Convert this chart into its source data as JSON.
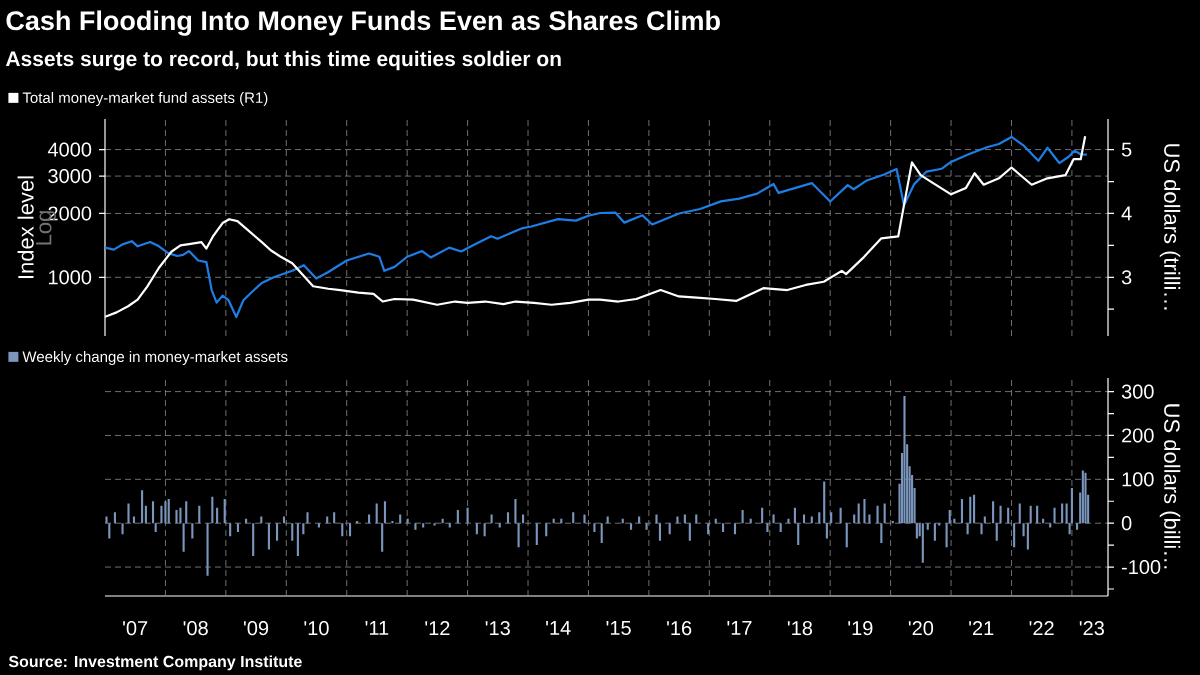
{
  "chart_data": [
    {
      "type": "line",
      "title": "Cash Flooding Into Money Funds Even as Shares Climb",
      "subtitle": "Assets surge to record, but this time equities soldier on",
      "ylabel": "Index level",
      "y2label": "US dollars (trilli…",
      "annotations": [
        "Log"
      ],
      "xlim": [
        "2007-01-01",
        "2023-08-07"
      ],
      "ylim": [
        529,
        5575
      ],
      "yticks": [
        1000,
        2000,
        3000,
        4000
      ],
      "log": "y",
      "y2lim": [
        2.08,
        5.48
      ],
      "y2ticks": [
        {
          "value": 2.5,
          "label": null
        },
        3,
        {
          "value": 3.5,
          "label": null
        },
        4,
        {
          "value": 4.5,
          "label": null
        },
        5
      ],
      "grid": true,
      "legend": "top left",
      "tick_labels": "y",
      "marker": "none",
      "line_style": "solid",
      "series": [
        {
          "name": "Total money-market fund assets (R1)",
          "color": "#ffffff",
          "axis": "y2",
          "x": [
            "2007-01-01",
            "2007-03-12",
            "2007-05-23",
            "2007-07-17",
            "2007-09-12",
            "2007-11-23",
            "2008-02-06",
            "2008-04-01",
            "2008-05-23",
            "2008-08-06",
            "2008-09-05",
            "2008-10-17",
            "2008-12-12",
            "2009-01-21",
            "2009-03-12",
            "2009-05-23",
            "2009-08-06",
            "2009-10-01",
            "2009-11-23",
            "2010-02-06",
            "2010-04-17",
            "2010-06-12",
            "2010-09-12",
            "2010-11-23",
            "2011-03-12",
            "2011-06-12",
            "2011-08-06",
            "2011-10-17",
            "2012-02-06",
            "2012-07-01",
            "2012-10-17",
            "2013-01-01",
            "2013-04-17",
            "2013-08-06",
            "2013-10-17",
            "2014-02-06",
            "2014-05-23",
            "2014-09-12",
            "2015-01-01",
            "2015-03-12",
            "2015-07-01",
            "2015-10-17",
            "2016-03-12",
            "2016-07-01",
            "2016-10-17",
            "2017-02-06",
            "2017-06-12",
            "2017-11-23",
            "2018-04-17",
            "2018-08-06",
            "2018-11-23",
            "2019-03-12",
            "2019-04-07",
            "2019-07-17",
            "2019-11-06",
            "2020-02-16",
            "2020-03-22",
            "2020-05-09",
            "2020-07-01",
            "2020-09-05",
            "2021-01-01",
            "2021-04-01",
            "2021-05-23",
            "2021-07-17",
            "2021-10-17",
            "2022-01-01",
            "2022-05-03",
            "2022-08-06",
            "2022-11-23",
            "2023-01-11",
            "2023-02-23",
            "2023-03-22"
          ],
          "values": [
            2.38,
            2.45,
            2.55,
            2.65,
            2.85,
            3.15,
            3.4,
            3.5,
            3.52,
            3.55,
            3.45,
            3.65,
            3.85,
            3.91,
            3.88,
            3.72,
            3.55,
            3.42,
            3.33,
            3.22,
            3.02,
            2.86,
            2.82,
            2.8,
            2.76,
            2.74,
            2.62,
            2.66,
            2.65,
            2.57,
            2.62,
            2.6,
            2.62,
            2.58,
            2.62,
            2.6,
            2.57,
            2.6,
            2.65,
            2.65,
            2.62,
            2.66,
            2.8,
            2.7,
            2.68,
            2.66,
            2.63,
            2.83,
            2.8,
            2.88,
            2.93,
            3.1,
            3.05,
            3.3,
            3.61,
            3.64,
            4.13,
            4.8,
            4.6,
            4.49,
            4.3,
            4.4,
            4.63,
            4.45,
            4.55,
            4.72,
            4.45,
            4.55,
            4.6,
            4.85,
            4.85,
            5.21
          ]
        },
        {
          "color": "#1e7ee6",
          "axis": "y",
          "x": [
            "2007-01-01",
            "2007-02-23",
            "2007-04-17",
            "2007-06-12",
            "2007-07-17",
            "2007-10-01",
            "2007-11-23",
            "2008-01-17",
            "2008-03-12",
            "2008-04-17",
            "2008-05-23",
            "2008-07-17",
            "2008-09-05",
            "2008-10-07",
            "2008-11-06",
            "2008-12-12",
            "2009-01-17",
            "2009-03-05",
            "2009-04-17",
            "2009-06-12",
            "2009-08-06",
            "2009-10-17",
            "2010-02-06",
            "2010-04-17",
            "2010-07-01",
            "2010-09-12",
            "2011-01-01",
            "2011-05-16",
            "2011-07-17",
            "2011-08-16",
            "2011-10-17",
            "2012-01-01",
            "2012-04-01",
            "2012-05-23",
            "2012-09-12",
            "2012-11-23",
            "2013-02-06",
            "2013-05-23",
            "2013-07-01",
            "2013-11-23",
            "2014-01-21",
            "2014-07-01",
            "2014-10-17",
            "2015-01-01",
            "2015-03-12",
            "2015-06-12",
            "2015-08-06",
            "2015-11-23",
            "2016-01-21",
            "2016-07-01",
            "2016-11-06",
            "2017-03-12",
            "2017-07-01",
            "2017-10-17",
            "2018-01-24",
            "2018-02-23",
            "2018-09-12",
            "2019-01-01",
            "2019-04-17",
            "2019-05-23",
            "2019-08-06",
            "2019-11-23",
            "2020-02-06",
            "2020-03-22",
            "2020-05-23",
            "2020-08-06",
            "2020-11-06",
            "2021-01-01",
            "2021-04-17",
            "2021-08-06",
            "2021-10-17",
            "2022-01-01",
            "2022-03-12",
            "2022-06-12",
            "2022-08-06",
            "2022-10-17",
            "2022-12-12",
            "2023-01-17",
            "2023-02-23",
            "2023-04-01"
          ],
          "values": [
            1379,
            1350,
            1430,
            1480,
            1400,
            1468,
            1400,
            1300,
            1260,
            1275,
            1330,
            1200,
            1180,
            870,
            760,
            820,
            780,
            650,
            780,
            860,
            940,
            1000,
            1073,
            1140,
            987,
            1060,
            1200,
            1295,
            1250,
            1073,
            1120,
            1250,
            1330,
            1240,
            1380,
            1324,
            1420,
            1560,
            1520,
            1700,
            1736,
            1880,
            1850,
            1950,
            2010,
            2020,
            1810,
            1960,
            1775,
            2000,
            2100,
            2280,
            2350,
            2480,
            2755,
            2500,
            2780,
            2276,
            2720,
            2600,
            2850,
            3050,
            3243,
            2184,
            2750,
            3150,
            3250,
            3500,
            3800,
            4100,
            4250,
            4588,
            4200,
            3540,
            4080,
            3456,
            3700,
            3950,
            3800,
            3790
          ]
        }
      ]
    },
    {
      "type": "bar",
      "y2label": "US dollars (billi…",
      "annotations": [
        "Source: Investment Company Institute"
      ],
      "xlim": [
        "2007-01-01",
        "2023-08-07"
      ],
      "xticks": [
        {
          "value": "2007-07-02",
          "label": "'07"
        },
        {
          "value": "2008-07-02",
          "label": "'08"
        },
        {
          "value": "2009-07-02",
          "label": "'09"
        },
        {
          "value": "2010-07-02",
          "label": "'10"
        },
        {
          "value": "2011-07-02",
          "label": "'11"
        },
        {
          "value": "2012-07-02",
          "label": "'12"
        },
        {
          "value": "2013-07-02",
          "label": "'13"
        },
        {
          "value": "2014-07-02",
          "label": "'14"
        },
        {
          "value": "2015-07-02",
          "label": "'15"
        },
        {
          "value": "2016-07-02",
          "label": "'16"
        },
        {
          "value": "2017-07-02",
          "label": "'17"
        },
        {
          "value": "2018-07-02",
          "label": "'18"
        },
        {
          "value": "2019-07-02",
          "label": "'19"
        },
        {
          "value": "2020-07-02",
          "label": "'20"
        },
        {
          "value": "2021-07-02",
          "label": "'21"
        },
        {
          "value": "2022-07-02",
          "label": "'22"
        },
        {
          "value": "2023-05-01",
          "label": "'23"
        },
        {
          "value": "2008-01-01",
          "label": null
        },
        {
          "value": "2009-01-01",
          "label": null
        },
        {
          "value": "2010-01-01",
          "label": null
        },
        {
          "value": "2011-01-01",
          "label": null
        },
        {
          "value": "2012-01-01",
          "label": null
        },
        {
          "value": "2013-01-01",
          "label": null
        },
        {
          "value": "2014-01-01",
          "label": null
        },
        {
          "value": "2015-01-01",
          "label": null
        },
        {
          "value": "2016-01-01",
          "label": null
        },
        {
          "value": "2017-01-01",
          "label": null
        },
        {
          "value": "2018-01-01",
          "label": null
        },
        {
          "value": "2019-01-01",
          "label": null
        },
        {
          "value": "2020-01-01",
          "label": null
        },
        {
          "value": "2021-01-01",
          "label": null
        },
        {
          "value": "2022-01-01",
          "label": null
        },
        {
          "value": "2023-01-01",
          "label": null
        }
      ],
      "y2lim": [
        -166,
        331
      ],
      "y2ticks": [
        {
          "value": -150,
          "label": null
        },
        -100,
        {
          "value": -50,
          "label": null
        },
        0,
        {
          "value": 50,
          "label": null
        },
        100,
        {
          "value": 150,
          "label": null
        },
        200,
        {
          "value": 250,
          "label": null
        },
        300
      ],
      "grid": true,
      "legend": "top left",
      "series": [
        {
          "name": "Weekly change in money-market assets",
          "color": "#7b96bd",
          "axis": "y2",
          "x": [
            "2007-01-10",
            "2007-01-27",
            "2007-03-02",
            "2007-04-17",
            "2007-05-23",
            "2007-06-25",
            "2007-08-13",
            "2007-09-05",
            "2007-10-18",
            "2007-11-03",
            "2007-12-08",
            "2008-01-01",
            "2008-01-21",
            "2008-03-08",
            "2008-04-01",
            "2008-04-20",
            "2008-05-06",
            "2008-06-12",
            "2008-07-24",
            "2008-09-12",
            "2008-10-11",
            "2008-11-09",
            "2008-12-25",
            "2009-01-27",
            "2009-03-15",
            "2009-05-03",
            "2009-06-15",
            "2009-08-03",
            "2009-09-18",
            "2009-11-06",
            "2009-12-18",
            "2010-02-06",
            "2010-03-12",
            "2010-04-14",
            "2010-05-09",
            "2010-07-17",
            "2010-09-05",
            "2010-10-17",
            "2010-12-05",
            "2011-01-21",
            "2011-03-05",
            "2011-05-16",
            "2011-07-01",
            "2011-08-03",
            "2011-08-20",
            "2011-10-04",
            "2011-11-20",
            "2012-01-04",
            "2012-02-20",
            "2012-04-07",
            "2012-06-15",
            "2012-08-03",
            "2012-09-15",
            "2012-11-03",
            "2013-01-01",
            "2013-02-26",
            "2013-04-14",
            "2013-05-26",
            "2013-07-14",
            "2013-09-02",
            "2013-10-17",
            "2013-11-05",
            "2013-12-02",
            "2014-02-23",
            "2014-04-21",
            "2014-06-05",
            "2014-07-21",
            "2014-10-01",
            "2014-12-08",
            "2015-02-06",
            "2015-03-22",
            "2015-04-27",
            "2015-07-27",
            "2015-09-15",
            "2015-11-03",
            "2015-12-18",
            "2016-02-16",
            "2016-03-08",
            "2016-05-06",
            "2016-06-22",
            "2016-08-06",
            "2016-09-05",
            "2016-10-14",
            "2016-12-25",
            "2017-02-09",
            "2017-03-25",
            "2017-06-05",
            "2017-07-21",
            "2017-09-08",
            "2017-11-16",
            "2017-12-18",
            "2018-01-24",
            "2018-03-08",
            "2018-04-24",
            "2018-06-02",
            "2018-06-22",
            "2018-07-27",
            "2018-09-12",
            "2018-10-27",
            "2018-11-26",
            "2018-12-12",
            "2019-01-07",
            "2019-03-05",
            "2019-04-11",
            "2019-05-26",
            "2019-06-22",
            "2019-07-27",
            "2019-08-26",
            "2019-10-14",
            "2019-11-06",
            "2019-11-26",
            "2020-01-14",
            "2020-02-24",
            "2020-03-10",
            "2020-03-25",
            "2020-04-10",
            "2020-04-25",
            "2020-05-10",
            "2020-05-25",
            "2020-06-08",
            "2020-06-25",
            "2020-07-14",
            "2020-08-13",
            "2020-09-25",
            "2020-10-21",
            "2020-12-05",
            "2020-12-24",
            "2021-01-21",
            "2021-03-08",
            "2021-04-11",
            "2021-04-27",
            "2021-05-20",
            "2021-07-04",
            "2021-07-24",
            "2021-09-12",
            "2021-10-04",
            "2021-10-27",
            "2021-12-12",
            "2022-01-17",
            "2022-02-20",
            "2022-03-15",
            "2022-04-10",
            "2022-04-27",
            "2022-06-05",
            "2022-07-11",
            "2022-08-23",
            "2022-09-18",
            "2022-11-03",
            "2022-11-30",
            "2022-12-18",
            "2023-01-01",
            "2023-02-01",
            "2023-02-20",
            "2023-03-08",
            "2023-03-24",
            "2023-04-09"
          ],
          "values": [
            15,
            -35,
            25,
            -25,
            45,
            15,
            75,
            40,
            50,
            -20,
            40,
            50,
            55,
            30,
            35,
            -65,
            50,
            -35,
            40,
            -120,
            60,
            35,
            55,
            -30,
            -20,
            10,
            -75,
            15,
            -60,
            -40,
            15,
            -40,
            -75,
            -25,
            25,
            -10,
            15,
            25,
            -30,
            -30,
            5,
            20,
            45,
            -65,
            50,
            5,
            20,
            10,
            -15,
            -10,
            -5,
            10,
            -10,
            30,
            35,
            -25,
            -30,
            20,
            -10,
            25,
            55,
            -55,
            20,
            -50,
            -30,
            10,
            10,
            25,
            20,
            -20,
            -45,
            15,
            10,
            -15,
            15,
            -15,
            20,
            -40,
            -25,
            15,
            20,
            -40,
            20,
            -25,
            10,
            -20,
            -25,
            30,
            10,
            35,
            -20,
            20,
            -20,
            10,
            35,
            -50,
            20,
            15,
            25,
            95,
            -35,
            25,
            35,
            -55,
            20,
            45,
            55,
            20,
            40,
            -45,
            45,
            5,
            90,
            160,
            290,
            180,
            130,
            110,
            80,
            -35,
            -30,
            -90,
            -15,
            -40,
            -5,
            -55,
            30,
            10,
            55,
            -25,
            60,
            65,
            -25,
            15,
            50,
            -40,
            40,
            35,
            -55,
            45,
            -30,
            -60,
            40,
            40,
            10,
            -10,
            35,
            45,
            45,
            -25,
            80,
            -15,
            70,
            120,
            115,
            65
          ]
        }
      ]
    }
  ]
}
